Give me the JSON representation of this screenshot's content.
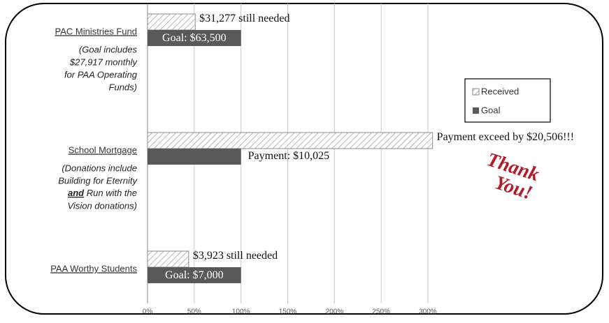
{
  "chart_data": {
    "type": "hbar",
    "categories": [
      "PAC Ministries Fund",
      "School Mortgage",
      "PAA Worthy Students"
    ],
    "category_notes": [
      [
        "(Goal includes",
        "$27,917 monthly",
        "for PAA Operating",
        "Funds)"
      ],
      [
        "(Donations include",
        "Building for Eternity",
        [
          "and",
          " Run with the"
        ],
        "Vision donations)"
      ],
      []
    ],
    "series": [
      {
        "name": "Received",
        "color": "#ffffff",
        "values": [
          51,
          305,
          44
        ],
        "notes": [
          "$31,277 still needed",
          "Payment exceed by $20,506!!!",
          "$3,923 still needed"
        ]
      },
      {
        "name": "Goal",
        "color": "#595959",
        "values": [
          100,
          100,
          100
        ],
        "notes": [
          "Goal:  $63,500",
          "Payment:  $10,025",
          "Goal:  $7,000"
        ]
      }
    ],
    "xlim": [
      0,
      300
    ],
    "xticks": [
      {
        "value": 0,
        "label": "0%"
      },
      {
        "value": 50,
        "label": "50%"
      },
      {
        "value": 100,
        "label": "100%"
      },
      {
        "value": 150,
        "label": "150%"
      },
      {
        "value": 200,
        "label": "200%"
      },
      {
        "value": 250,
        "label": "250%"
      },
      {
        "value": 300,
        "label": "300%"
      }
    ],
    "grid": true,
    "legend": "right",
    "thank_you": [
      "Thank",
      "You!"
    ]
  }
}
